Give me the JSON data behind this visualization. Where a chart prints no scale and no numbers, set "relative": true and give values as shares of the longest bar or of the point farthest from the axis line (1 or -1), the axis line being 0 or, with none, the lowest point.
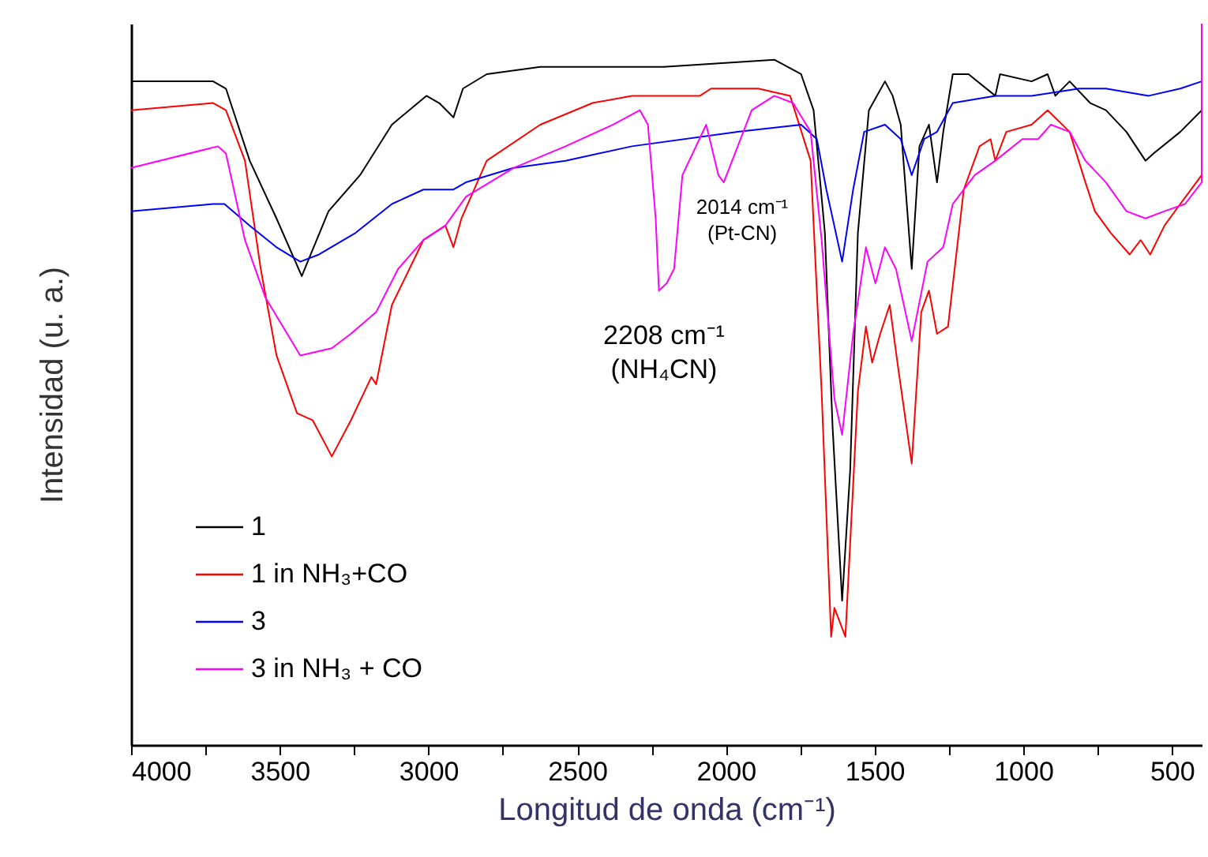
{
  "chart_data": {
    "type": "line",
    "relative": true,
    "xlabel": "Longitud de onda (cm⁻¹)",
    "ylabel": "Intensidad (u. a.)",
    "xlim": [
      4000,
      400
    ],
    "xticks": [
      4000,
      {
        "value": 3750,
        "label": null
      },
      3500,
      {
        "value": 3250,
        "label": null
      },
      3000,
      {
        "value": 2750,
        "label": null
      },
      2500,
      {
        "value": 2250,
        "label": null
      },
      2000,
      {
        "value": 1750,
        "label": null
      },
      1500,
      {
        "value": 1250,
        "label": null
      },
      1000,
      {
        "value": 750,
        "label": null
      },
      500
    ],
    "legend": "bottom left",
    "grid": false,
    "line_style": "solid",
    "marker": "none",
    "annotations": [
      {
        "text": "2208 cm⁻¹\n(NH₄CN)",
        "x": 2208,
        "y": 0.632
      },
      {
        "text": "2014 cm⁻¹\n(Pt-CN)",
        "x": 2014,
        "y": 0.78
      }
    ],
    "series": [
      {
        "name": "1",
        "color": "#000000",
        "x": [
          4000,
          3724,
          3681,
          3601,
          3511,
          3426,
          3336,
          3230,
          3123,
          3007,
          2964,
          2916,
          2884,
          2804,
          2624,
          2448,
          2209,
          1837,
          1747,
          1705,
          1667,
          1641,
          1609,
          1582,
          1556,
          1519,
          1465,
          1439,
          1412,
          1375,
          1349,
          1317,
          1290,
          1269,
          1237,
          1184,
          1094,
          1078,
          972,
          918,
          892,
          844,
          775,
          722,
          653,
          589,
          562,
          472,
          400
        ],
        "values": [
          0.92,
          0.92,
          0.91,
          0.81,
          0.73,
          0.65,
          0.74,
          0.79,
          0.86,
          0.9,
          0.89,
          0.87,
          0.91,
          0.93,
          0.94,
          0.94,
          0.94,
          0.95,
          0.93,
          0.88,
          0.71,
          0.44,
          0.2,
          0.38,
          0.71,
          0.88,
          0.92,
          0.9,
          0.86,
          0.66,
          0.83,
          0.86,
          0.78,
          0.85,
          0.93,
          0.93,
          0.9,
          0.93,
          0.92,
          0.93,
          0.9,
          0.92,
          0.89,
          0.88,
          0.85,
          0.81,
          0.82,
          0.85,
          0.88
        ]
      },
      {
        "name": "1 in NH₃+CO",
        "color": "#ff0000",
        "x": [
          4000,
          3724,
          3681,
          3617,
          3564,
          3511,
          3442,
          3389,
          3325,
          3261,
          3192,
          3176,
          3123,
          3017,
          2943,
          2916,
          2889,
          2804,
          2624,
          2448,
          2316,
          2209,
          2087,
          2050,
          1891,
          1784,
          1715,
          1678,
          1646,
          1635,
          1598,
          1556,
          1529,
          1508,
          1481,
          1449,
          1423,
          1375,
          1343,
          1317,
          1290,
          1253,
          1200,
          1147,
          1110,
          1094,
          1057,
          972,
          918,
          844,
          791,
          759,
          706,
          642,
          605,
          573,
          525,
          472,
          400
        ],
        "values": [
          0.88,
          0.89,
          0.88,
          0.81,
          0.66,
          0.54,
          0.46,
          0.45,
          0.4,
          0.45,
          0.51,
          0.5,
          0.61,
          0.7,
          0.72,
          0.69,
          0.73,
          0.81,
          0.86,
          0.89,
          0.9,
          0.9,
          0.9,
          0.91,
          0.91,
          0.9,
          0.81,
          0.49,
          0.15,
          0.19,
          0.15,
          0.49,
          0.58,
          0.53,
          0.57,
          0.61,
          0.53,
          0.39,
          0.6,
          0.63,
          0.57,
          0.58,
          0.77,
          0.83,
          0.84,
          0.81,
          0.85,
          0.86,
          0.88,
          0.85,
          0.78,
          0.74,
          0.71,
          0.68,
          0.7,
          0.68,
          0.72,
          0.75,
          0.79
        ]
      },
      {
        "name": "3",
        "color": "#0000ff",
        "x": [
          4000,
          3724,
          3686,
          3601,
          3511,
          3431,
          3368,
          3245,
          3123,
          3017,
          2927,
          2916,
          2874,
          2714,
          2539,
          2316,
          1960,
          1747,
          1694,
          1662,
          1609,
          1572,
          1535,
          1465,
          1412,
          1375,
          1333,
          1290,
          1237,
          1094,
          972,
          812,
          722,
          578,
          472,
          400
        ],
        "values": [
          0.74,
          0.75,
          0.75,
          0.72,
          0.69,
          0.67,
          0.68,
          0.71,
          0.75,
          0.77,
          0.77,
          0.77,
          0.78,
          0.8,
          0.81,
          0.83,
          0.85,
          0.86,
          0.84,
          0.77,
          0.67,
          0.77,
          0.85,
          0.86,
          0.84,
          0.79,
          0.84,
          0.85,
          0.89,
          0.9,
          0.9,
          0.91,
          0.91,
          0.9,
          0.91,
          0.92
        ]
      },
      {
        "name": "3 in NH₃ + CO",
        "color": "#ff00ff",
        "x": [
          4000,
          3708,
          3681,
          3617,
          3548,
          3431,
          3325,
          3261,
          3176,
          3102,
          3017,
          2943,
          2874,
          2714,
          2539,
          2379,
          2289,
          2262,
          2236,
          2225,
          2199,
          2174,
          2146,
          2066,
          2025,
          2007,
          1960,
          1913,
          1837,
          1774,
          1715,
          1678,
          1635,
          1609,
          1572,
          1529,
          1497,
          1465,
          1428,
          1375,
          1322,
          1269,
          1237,
          1163,
          1094,
          1003,
          950,
          907,
          844,
          791,
          722,
          653,
          589,
          525,
          456,
          400,
          400
        ],
        "values": [
          0.8,
          0.83,
          0.82,
          0.7,
          0.62,
          0.54,
          0.55,
          0.57,
          0.6,
          0.66,
          0.7,
          0.72,
          0.76,
          0.8,
          0.83,
          0.86,
          0.88,
          0.86,
          0.73,
          0.63,
          0.64,
          0.66,
          0.79,
          0.86,
          0.79,
          0.78,
          0.83,
          0.88,
          0.9,
          0.89,
          0.85,
          0.7,
          0.48,
          0.43,
          0.57,
          0.69,
          0.64,
          0.69,
          0.66,
          0.56,
          0.67,
          0.69,
          0.75,
          0.79,
          0.81,
          0.84,
          0.84,
          0.86,
          0.85,
          0.81,
          0.78,
          0.74,
          0.73,
          0.74,
          0.75,
          0.78,
          1
        ]
      }
    ]
  }
}
